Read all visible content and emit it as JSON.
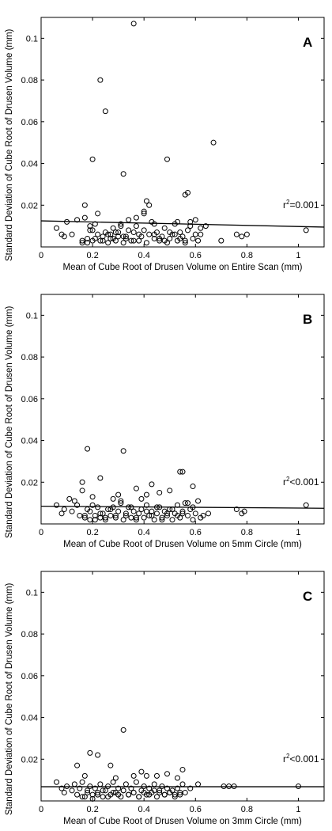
{
  "chart_data": [
    {
      "type": "scatter",
      "panel": "A",
      "xlabel": "Mean of Cube Root of Drusen Volume on Entire Scan (mm)",
      "ylabel": "Standard Deviation of Cube Root of Drusen Volume (mm)",
      "xlim": [
        0,
        1.1
      ],
      "ylim": [
        0,
        0.11
      ],
      "xticks": [
        "0",
        "0.2",
        "0.4",
        "0.6",
        "0.8",
        "1"
      ],
      "yticks": [
        "0.02",
        "0.04",
        "0.06",
        "0.08",
        "0.1"
      ],
      "r_squared_prefix": "r",
      "r_squared_sup": "2",
      "r_squared_value": "=0.001",
      "regression": {
        "x": [
          0,
          1.1
        ],
        "y": [
          0.0125,
          0.0095
        ]
      },
      "x": [
        0.06,
        0.08,
        0.09,
        0.1,
        0.12,
        0.14,
        0.16,
        0.17,
        0.18,
        0.19,
        0.2,
        0.21,
        0.22,
        0.23,
        0.24,
        0.25,
        0.26,
        0.27,
        0.28,
        0.29,
        0.3,
        0.31,
        0.32,
        0.33,
        0.34,
        0.35,
        0.36,
        0.37,
        0.38,
        0.39,
        0.4,
        0.41,
        0.42,
        0.43,
        0.44,
        0.45,
        0.46,
        0.47,
        0.48,
        0.49,
        0.5,
        0.51,
        0.52,
        0.53,
        0.54,
        0.55,
        0.56,
        0.57,
        0.58,
        0.59,
        0.6,
        0.61,
        0.62,
        0.16,
        0.18,
        0.2,
        0.22,
        0.24,
        0.26,
        0.28,
        0.3,
        0.32,
        0.34,
        0.36,
        0.38,
        0.4,
        0.42,
        0.44,
        0.46,
        0.48,
        0.5,
        0.52,
        0.54,
        0.56,
        0.58,
        0.6,
        0.62,
        0.64,
        0.7,
        0.76,
        0.78,
        0.8,
        1.03,
        0.36,
        0.23,
        0.25,
        0.49,
        0.67,
        0.32,
        0.57,
        0.2,
        0.41,
        0.56,
        0.17,
        0.4,
        0.19,
        0.31,
        0.29,
        0.44,
        0.33,
        0.21,
        0.27,
        0.37,
        0.53
      ],
      "y": [
        0.009,
        0.006,
        0.005,
        0.012,
        0.006,
        0.013,
        0.003,
        0.02,
        0.002,
        0.01,
        0.008,
        0.004,
        0.016,
        0.003,
        0.005,
        0.007,
        0.002,
        0.006,
        0.009,
        0.003,
        0.005,
        0.011,
        0.002,
        0.004,
        0.013,
        0.003,
        0.007,
        0.01,
        0.003,
        0.005,
        0.008,
        0.002,
        0.006,
        0.012,
        0.004,
        0.007,
        0.003,
        0.005,
        0.009,
        0.002,
        0.004,
        0.006,
        0.011,
        0.003,
        0.007,
        0.005,
        0.002,
        0.008,
        0.012,
        0.004,
        0.006,
        0.003,
        0.009,
        0.002,
        0.004,
        0.003,
        0.006,
        0.003,
        0.006,
        0.004,
        0.007,
        0.005,
        0.008,
        0.003,
        0.006,
        0.017,
        0.02,
        0.006,
        0.004,
        0.003,
        0.007,
        0.006,
        0.004,
        0.003,
        0.01,
        0.013,
        0.006,
        0.01,
        0.003,
        0.006,
        0.005,
        0.006,
        0.008,
        0.107,
        0.08,
        0.065,
        0.042,
        0.05,
        0.035,
        0.026,
        0.042,
        0.022,
        0.025,
        0.014,
        0.016,
        0.008,
        0.01,
        0.007,
        0.011,
        0.005,
        0.011,
        0.004,
        0.014,
        0.012
      ]
    },
    {
      "type": "scatter",
      "panel": "B",
      "xlabel": "Mean of Cube Root of Drusen Volume on 5mm Circle (mm)",
      "ylabel": "Standard Deviation of Cube Root of Drusen Volume (mm)",
      "xlim": [
        0,
        1.1
      ],
      "ylim": [
        0,
        0.11
      ],
      "xticks": [
        "0",
        "0.2",
        "0.4",
        "0.6",
        "0.8",
        "1"
      ],
      "yticks": [
        "0.02",
        "0.04",
        "0.06",
        "0.08",
        "0.1"
      ],
      "r_squared_prefix": "r",
      "r_squared_sup": "2",
      "r_squared_value": "<0.001",
      "regression": {
        "x": [
          0,
          1.1
        ],
        "y": [
          0.0085,
          0.0075
        ]
      },
      "x": [
        0.06,
        0.08,
        0.09,
        0.11,
        0.12,
        0.14,
        0.15,
        0.16,
        0.17,
        0.18,
        0.19,
        0.2,
        0.21,
        0.22,
        0.23,
        0.24,
        0.25,
        0.26,
        0.27,
        0.28,
        0.29,
        0.3,
        0.31,
        0.32,
        0.33,
        0.34,
        0.35,
        0.36,
        0.37,
        0.38,
        0.39,
        0.4,
        0.41,
        0.42,
        0.43,
        0.44,
        0.45,
        0.46,
        0.47,
        0.48,
        0.49,
        0.5,
        0.51,
        0.52,
        0.53,
        0.54,
        0.55,
        0.56,
        0.57,
        0.58,
        0.59,
        0.6,
        0.61,
        0.62,
        0.65,
        0.17,
        0.19,
        0.21,
        0.23,
        0.25,
        0.27,
        0.29,
        0.31,
        0.33,
        0.35,
        0.37,
        0.39,
        0.41,
        0.43,
        0.45,
        0.47,
        0.49,
        0.51,
        0.53,
        0.55,
        0.57,
        0.59,
        0.63,
        0.76,
        0.78,
        0.79,
        1.03,
        0.18,
        0.32,
        0.54,
        0.55,
        0.23,
        0.16,
        0.43,
        0.3,
        0.2,
        0.13,
        0.41,
        0.37,
        0.28,
        0.46,
        0.59,
        0.5
      ],
      "y": [
        0.009,
        0.005,
        0.007,
        0.012,
        0.006,
        0.009,
        0.004,
        0.016,
        0.003,
        0.007,
        0.002,
        0.009,
        0.004,
        0.008,
        0.003,
        0.005,
        0.002,
        0.007,
        0.004,
        0.008,
        0.003,
        0.006,
        0.011,
        0.002,
        0.004,
        0.008,
        0.003,
        0.006,
        0.002,
        0.005,
        0.007,
        0.003,
        0.009,
        0.004,
        0.006,
        0.002,
        0.005,
        0.008,
        0.003,
        0.006,
        0.004,
        0.007,
        0.002,
        0.005,
        0.009,
        0.003,
        0.006,
        0.01,
        0.004,
        0.007,
        0.002,
        0.005,
        0.011,
        0.003,
        0.005,
        0.004,
        0.006,
        0.002,
        0.005,
        0.003,
        0.007,
        0.004,
        0.01,
        0.005,
        0.008,
        0.003,
        0.012,
        0.006,
        0.004,
        0.008,
        0.002,
        0.005,
        0.007,
        0.004,
        0.005,
        0.01,
        0.008,
        0.004,
        0.007,
        0.005,
        0.006,
        0.009,
        0.036,
        0.035,
        0.025,
        0.025,
        0.022,
        0.02,
        0.019,
        0.014,
        0.013,
        0.011,
        0.014,
        0.017,
        0.012,
        0.015,
        0.018,
        0.016
      ]
    },
    {
      "type": "scatter",
      "panel": "C",
      "xlabel": "Mean of Cube Root of Drusen Volume on 3mm Circle (mm)",
      "ylabel": "Standard Deviation of Cube Root of Drusen Volume (mm)",
      "xlim": [
        0,
        1.1
      ],
      "ylim": [
        0,
        0.11
      ],
      "xticks": [
        "0",
        "0.2",
        "0.4",
        "0.6",
        "0.8",
        "1"
      ],
      "yticks": [
        "0.02",
        "0.04",
        "0.06",
        "0.08",
        "0.1"
      ],
      "r_squared_prefix": "r",
      "r_squared_sup": "2",
      "r_squared_value": "<0.001",
      "regression": {
        "x": [
          0,
          1.1
        ],
        "y": [
          0.0068,
          0.0068
        ]
      },
      "x": [
        0.06,
        0.08,
        0.09,
        0.1,
        0.12,
        0.13,
        0.14,
        0.15,
        0.16,
        0.17,
        0.18,
        0.19,
        0.2,
        0.21,
        0.22,
        0.23,
        0.24,
        0.25,
        0.26,
        0.27,
        0.28,
        0.29,
        0.3,
        0.31,
        0.32,
        0.33,
        0.34,
        0.35,
        0.36,
        0.37,
        0.38,
        0.39,
        0.4,
        0.41,
        0.42,
        0.43,
        0.44,
        0.45,
        0.46,
        0.47,
        0.48,
        0.49,
        0.5,
        0.51,
        0.52,
        0.53,
        0.54,
        0.55,
        0.56,
        0.58,
        0.61,
        0.71,
        0.73,
        0.75,
        1.0,
        0.16,
        0.18,
        0.2,
        0.22,
        0.24,
        0.26,
        0.28,
        0.3,
        0.32,
        0.34,
        0.36,
        0.38,
        0.4,
        0.42,
        0.44,
        0.46,
        0.48,
        0.5,
        0.52,
        0.54,
        0.19,
        0.32,
        0.22,
        0.27,
        0.14,
        0.39,
        0.49,
        0.55,
        0.45,
        0.17,
        0.29,
        0.36,
        0.53,
        0.41
      ],
      "y": [
        0.009,
        0.006,
        0.004,
        0.007,
        0.005,
        0.008,
        0.003,
        0.006,
        0.009,
        0.002,
        0.005,
        0.007,
        0.003,
        0.006,
        0.004,
        0.008,
        0.002,
        0.005,
        0.007,
        0.003,
        0.009,
        0.004,
        0.006,
        0.002,
        0.005,
        0.008,
        0.003,
        0.006,
        0.004,
        0.009,
        0.002,
        0.005,
        0.007,
        0.003,
        0.006,
        0.004,
        0.008,
        0.002,
        0.005,
        0.007,
        0.003,
        0.006,
        0.004,
        0.005,
        0.002,
        0.006,
        0.003,
        0.008,
        0.004,
        0.006,
        0.008,
        0.007,
        0.007,
        0.007,
        0.007,
        0.002,
        0.004,
        0.001,
        0.003,
        0.005,
        0.002,
        0.004,
        0.003,
        0.005,
        0.003,
        0.004,
        0.002,
        0.004,
        0.003,
        0.005,
        0.004,
        0.003,
        0.004,
        0.003,
        0.004,
        0.023,
        0.034,
        0.022,
        0.017,
        0.017,
        0.014,
        0.013,
        0.015,
        0.012,
        0.012,
        0.011,
        0.012,
        0.011,
        0.012
      ]
    }
  ]
}
